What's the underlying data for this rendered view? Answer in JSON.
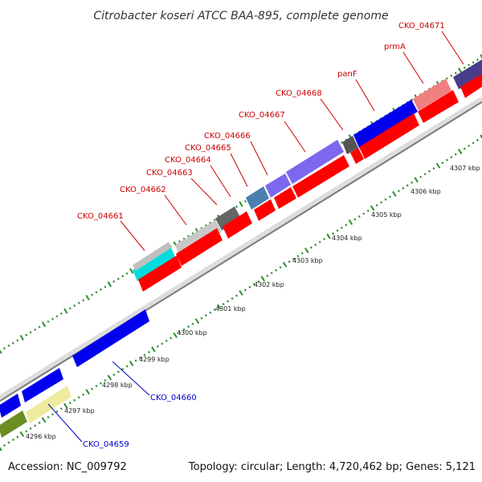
{
  "title": "Citrobacter koseri ATCC BAA-895, complete genome",
  "footer": {
    "accession": "Accession: NC_009792",
    "topology": "Topology: circular; Length: 4,720,462 bp; Genes: 5,121"
  },
  "colors": {
    "backbone": "#8c8c8c",
    "label_top": "#cc0000",
    "label_bottom": "#0000cc",
    "tick": "#2e8b2e",
    "cds_red": "#ff0000"
  },
  "scale_ticks": [
    {
      "label": "4296 kbp"
    },
    {
      "label": "4297 kbp"
    },
    {
      "label": "4298 kbp"
    },
    {
      "label": "4299 kbp"
    },
    {
      "label": "4300 kbp"
    },
    {
      "label": "4301 kbp"
    },
    {
      "label": "4302 kbp"
    },
    {
      "label": "4303 kbp"
    },
    {
      "label": "4304 kbp"
    },
    {
      "label": "4305 kbp"
    },
    {
      "label": "4306 kbp"
    },
    {
      "label": "4307 kbp"
    }
  ],
  "gene_labels_top": [
    {
      "label": "CKO_04661"
    },
    {
      "label": "CKO_04662"
    },
    {
      "label": "CKO_04663"
    },
    {
      "label": "CKO_04664"
    },
    {
      "label": "CKO_04665"
    },
    {
      "label": "CKO_04666"
    },
    {
      "label": "CKO_04667"
    },
    {
      "label": "CKO_04668"
    },
    {
      "label": "panF"
    },
    {
      "label": "prmA"
    },
    {
      "label": "CKO_04671"
    }
  ],
  "gene_labels_bottom": [
    {
      "label": "CKO_04660"
    },
    {
      "label": "CKO_04659"
    }
  ]
}
